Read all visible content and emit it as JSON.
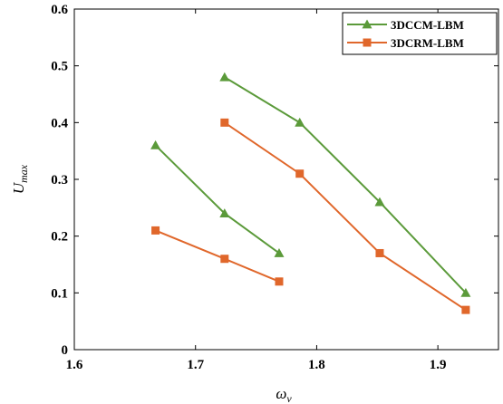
{
  "chart_data": {
    "type": "line",
    "xlabel": "ω",
    "xlabel_sub": "ν",
    "ylabel": "U",
    "ylabel_sub": "max",
    "xlim": [
      1.6,
      1.95
    ],
    "ylim": [
      0,
      0.6
    ],
    "xticks": [
      "1.6",
      "1.7",
      "1.8",
      "1.9"
    ],
    "xtick_values": [
      1.6,
      1.7,
      1.8,
      1.9
    ],
    "yticks": [
      "0",
      "0.1",
      "0.2",
      "0.3",
      "0.4",
      "0.5",
      "0.6"
    ],
    "ytick_values": [
      0,
      0.1,
      0.2,
      0.3,
      0.4,
      0.5,
      0.6
    ],
    "grid": false,
    "legend_position": "top-right",
    "series": [
      {
        "name": "3DCCM-LBM",
        "color": "#5b9a3a",
        "marker": "triangle",
        "segments": [
          {
            "x": [
              1.667,
              1.724,
              1.769
            ],
            "y": [
              0.36,
              0.24,
              0.17
            ]
          },
          {
            "x": [
              1.724,
              1.786,
              1.852,
              1.923
            ],
            "y": [
              0.48,
              0.4,
              0.26,
              0.1
            ]
          }
        ]
      },
      {
        "name": "3DCRM-LBM",
        "color": "#e0672b",
        "marker": "square",
        "segments": [
          {
            "x": [
              1.667,
              1.724,
              1.769
            ],
            "y": [
              0.21,
              0.16,
              0.12
            ]
          },
          {
            "x": [
              1.724,
              1.786,
              1.852,
              1.923
            ],
            "y": [
              0.4,
              0.31,
              0.17,
              0.07
            ]
          }
        ]
      }
    ]
  }
}
